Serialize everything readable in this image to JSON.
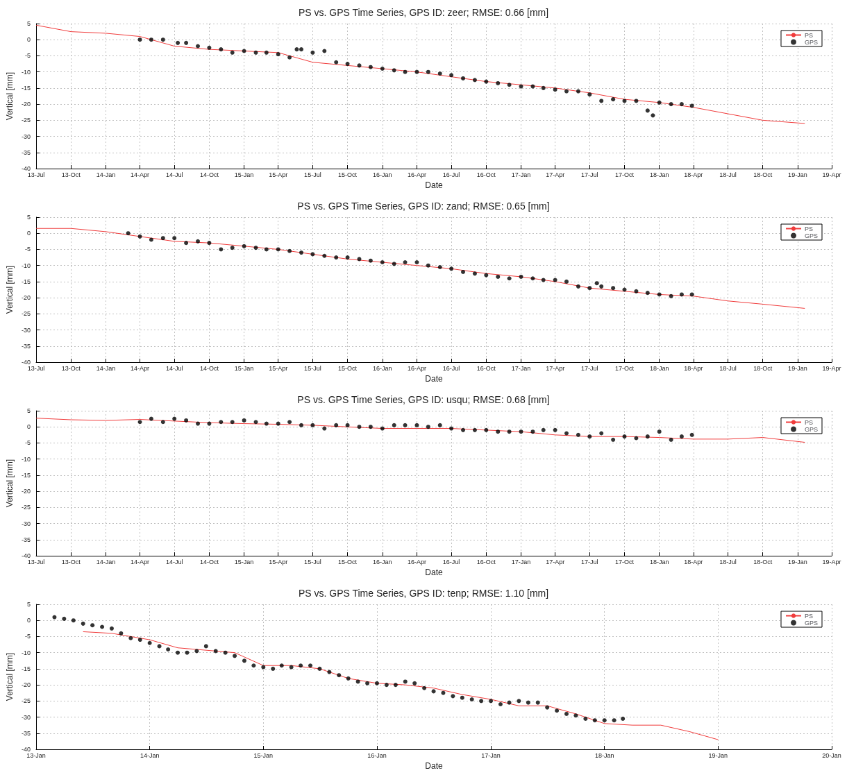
{
  "chart_data": [
    {
      "type": "line",
      "title": "PS vs. GPS Time Series, GPS ID: zeer; RMSE: 0.66 [mm]",
      "xlabel": "Date",
      "ylabel": "Vertical [mm]",
      "xlim": [
        "2013-07",
        "2019-04"
      ],
      "xticks": [
        {
          "value": "2013-07",
          "label": "13-Jul"
        },
        {
          "value": "2013-10",
          "label": "13-Oct"
        },
        {
          "value": "2014-01",
          "label": "14-Jan"
        },
        {
          "value": "2014-04",
          "label": "14-Apr"
        },
        {
          "value": "2014-07",
          "label": "14-Jul"
        },
        {
          "value": "2014-10",
          "label": "14-Oct"
        },
        {
          "value": "2015-01",
          "label": "15-Jan"
        },
        {
          "value": "2015-04",
          "label": "15-Apr"
        },
        {
          "value": "2015-07",
          "label": "15-Jul"
        },
        {
          "value": "2015-10",
          "label": "15-Oct"
        },
        {
          "value": "2016-01",
          "label": "16-Jan"
        },
        {
          "value": "2016-04",
          "label": "16-Apr"
        },
        {
          "value": "2016-07",
          "label": "16-Jul"
        },
        {
          "value": "2016-10",
          "label": "16-Oct"
        },
        {
          "value": "2017-01",
          "label": "17-Jan"
        },
        {
          "value": "2017-04",
          "label": "17-Apr"
        },
        {
          "value": "2017-07",
          "label": "17-Jul"
        },
        {
          "value": "2017-10",
          "label": "17-Oct"
        },
        {
          "value": "2018-01",
          "label": "18-Jan"
        },
        {
          "value": "2018-04",
          "label": "18-Apr"
        },
        {
          "value": "2018-07",
          "label": "18-Jul"
        },
        {
          "value": "2018-10",
          "label": "18-Oct"
        },
        {
          "value": "2019-01",
          "label": "19-Jan"
        },
        {
          "value": "2019-04",
          "label": "19-Apr"
        }
      ],
      "ylim": [
        -40,
        5
      ],
      "yticks": [
        -40,
        -35,
        -30,
        -25,
        -20,
        -15,
        -10,
        -5,
        0,
        5
      ],
      "grid": true,
      "legend": "top right",
      "series": [
        {
          "name": "PS",
          "type": "line",
          "color": "#f03c3c",
          "x": [
            "2013-07",
            "2013-10",
            "2014-01",
            "2014-04",
            "2014-07",
            "2014-10",
            "2015-01",
            "2015-04",
            "2015-07",
            "2015-10",
            "2016-01",
            "2016-04",
            "2016-07",
            "2016-10",
            "2017-01",
            "2017-04",
            "2017-07",
            "2017-10",
            "2018-01",
            "2018-04",
            "2018-10",
            "2019-01-20"
          ],
          "values": [
            4.5,
            2.5,
            2,
            1,
            -2,
            -3,
            -3.5,
            -4,
            -7,
            -8,
            -9,
            -10,
            -11.5,
            -13,
            -14,
            -15,
            -16.5,
            -18.5,
            -19.5,
            -21,
            -25,
            -26
          ]
        },
        {
          "name": "GPS",
          "type": "scatter",
          "marker": "circle",
          "color": "#000000",
          "x": [
            "2014-04",
            "2014-05",
            "2014-06",
            "2014-07-10",
            "2014-08",
            "2014-09",
            "2014-10",
            "2014-11",
            "2014-12",
            "2015-01",
            "2015-02",
            "2015-03",
            "2015-04",
            "2015-05",
            "2015-05-20",
            "2015-06",
            "2015-07",
            "2015-08",
            "2015-09",
            "2015-10",
            "2015-11",
            "2015-12",
            "2016-01",
            "2016-02",
            "2016-03",
            "2016-04",
            "2016-05",
            "2016-06",
            "2016-07",
            "2016-08",
            "2016-09",
            "2016-10",
            "2016-11",
            "2016-12",
            "2017-01",
            "2017-02",
            "2017-03",
            "2017-04",
            "2017-05",
            "2017-06",
            "2017-07",
            "2017-08",
            "2017-09",
            "2017-10",
            "2017-11",
            "2017-12",
            "2017-12-15",
            "2018-01",
            "2018-02",
            "2018-03",
            "2018-03-28"
          ],
          "values": [
            0,
            0,
            0,
            -1,
            -1,
            -2,
            -2.5,
            -3,
            -4,
            -3.5,
            -4,
            -4,
            -4.5,
            -5.5,
            -3,
            -3,
            -4,
            -3.5,
            -7,
            -7.5,
            -8,
            -8.5,
            -9,
            -9.5,
            -10,
            -10,
            -10,
            -10.5,
            -11,
            -12,
            -12.5,
            -13,
            -13.5,
            -14,
            -14.5,
            -14.5,
            -15,
            -15.5,
            -16,
            -16,
            -17,
            -19,
            -18.5,
            -19,
            -19,
            -22,
            -23.5,
            -19.5,
            -20,
            -20,
            -20.5
          ]
        }
      ]
    },
    {
      "type": "line",
      "title": "PS vs. GPS Time Series, GPS ID: zand; RMSE: 0.65 [mm]",
      "xlabel": "Date",
      "ylabel": "Vertical [mm]",
      "xlim": [
        "2013-07",
        "2019-04"
      ],
      "xticks": [
        {
          "value": "2013-07",
          "label": "13-Jul"
        },
        {
          "value": "2013-10",
          "label": "13-Oct"
        },
        {
          "value": "2014-01",
          "label": "14-Jan"
        },
        {
          "value": "2014-04",
          "label": "14-Apr"
        },
        {
          "value": "2014-07",
          "label": "14-Jul"
        },
        {
          "value": "2014-10",
          "label": "14-Oct"
        },
        {
          "value": "2015-01",
          "label": "15-Jan"
        },
        {
          "value": "2015-04",
          "label": "15-Apr"
        },
        {
          "value": "2015-07",
          "label": "15-Jul"
        },
        {
          "value": "2015-10",
          "label": "15-Oct"
        },
        {
          "value": "2016-01",
          "label": "16-Jan"
        },
        {
          "value": "2016-04",
          "label": "16-Apr"
        },
        {
          "value": "2016-07",
          "label": "16-Jul"
        },
        {
          "value": "2016-10",
          "label": "16-Oct"
        },
        {
          "value": "2017-01",
          "label": "17-Jan"
        },
        {
          "value": "2017-04",
          "label": "17-Apr"
        },
        {
          "value": "2017-07",
          "label": "17-Jul"
        },
        {
          "value": "2017-10",
          "label": "17-Oct"
        },
        {
          "value": "2018-01",
          "label": "18-Jan"
        },
        {
          "value": "2018-04",
          "label": "18-Apr"
        },
        {
          "value": "2018-07",
          "label": "18-Jul"
        },
        {
          "value": "2018-10",
          "label": "18-Oct"
        },
        {
          "value": "2019-01",
          "label": "19-Jan"
        },
        {
          "value": "2019-04",
          "label": "19-Apr"
        }
      ],
      "ylim": [
        -40,
        5
      ],
      "yticks": [
        -40,
        -35,
        -30,
        -25,
        -20,
        -15,
        -10,
        -5,
        0,
        5
      ],
      "grid": true,
      "legend": "top right",
      "series": [
        {
          "name": "PS",
          "type": "line",
          "color": "#f03c3c",
          "x": [
            "2013-07",
            "2013-10",
            "2014-01",
            "2014-04",
            "2014-07",
            "2014-10",
            "2015-01",
            "2015-04",
            "2015-07",
            "2015-10",
            "2016-01",
            "2016-04",
            "2016-07",
            "2016-10",
            "2017-01",
            "2017-04",
            "2017-07",
            "2017-10",
            "2018-01",
            "2018-04",
            "2018-07",
            "2018-10",
            "2019-01-20"
          ],
          "values": [
            1.5,
            1.5,
            0.5,
            -1,
            -2.5,
            -3,
            -4,
            -5,
            -6.5,
            -8,
            -9,
            -10,
            -11,
            -12.5,
            -13.5,
            -15,
            -17,
            -18,
            -19,
            -19.5,
            -21,
            -22,
            -23.3
          ]
        },
        {
          "name": "GPS",
          "type": "scatter",
          "marker": "circle",
          "color": "#000000",
          "x": [
            "2014-03",
            "2014-04",
            "2014-05",
            "2014-06",
            "2014-07",
            "2014-08",
            "2014-09",
            "2014-10",
            "2014-11",
            "2014-12",
            "2015-01",
            "2015-02",
            "2015-03",
            "2015-04",
            "2015-05",
            "2015-06",
            "2015-07",
            "2015-08",
            "2015-09",
            "2015-10",
            "2015-11",
            "2015-12",
            "2016-01",
            "2016-02",
            "2016-03",
            "2016-04",
            "2016-05",
            "2016-06",
            "2016-07",
            "2016-08",
            "2016-09",
            "2016-10",
            "2016-11",
            "2016-12",
            "2017-01",
            "2017-02",
            "2017-03",
            "2017-04",
            "2017-05",
            "2017-06",
            "2017-07",
            "2017-07-20",
            "2017-08",
            "2017-09",
            "2017-10",
            "2017-11",
            "2017-12",
            "2018-01",
            "2018-02",
            "2018-03",
            "2018-03-28"
          ],
          "values": [
            0,
            -1,
            -2,
            -1.5,
            -1.5,
            -3,
            -2.5,
            -3,
            -5,
            -4.5,
            -4,
            -4.5,
            -5,
            -5,
            -5.5,
            -6,
            -6.5,
            -7,
            -7.5,
            -7.5,
            -8,
            -8.5,
            -9,
            -9.5,
            -9,
            -9,
            -10,
            -10.5,
            -11,
            -12,
            -12.5,
            -13,
            -13.5,
            -14,
            -13.5,
            -14,
            -14.5,
            -14.5,
            -15,
            -16.5,
            -17,
            -15.5,
            -16.5,
            -17,
            -17.5,
            -18,
            -18.5,
            -19,
            -19.5,
            -19,
            -19
          ]
        }
      ]
    },
    {
      "type": "line",
      "title": "PS vs. GPS Time Series, GPS ID: usqu; RMSE: 0.68 [mm]",
      "xlabel": "Date",
      "ylabel": "Vertical [mm]",
      "xlim": [
        "2013-07",
        "2019-04"
      ],
      "xticks": [
        {
          "value": "2013-07",
          "label": "13-Jul"
        },
        {
          "value": "2013-10",
          "label": "13-Oct"
        },
        {
          "value": "2014-01",
          "label": "14-Jan"
        },
        {
          "value": "2014-04",
          "label": "14-Apr"
        },
        {
          "value": "2014-07",
          "label": "14-Jul"
        },
        {
          "value": "2014-10",
          "label": "14-Oct"
        },
        {
          "value": "2015-01",
          "label": "15-Jan"
        },
        {
          "value": "2015-04",
          "label": "15-Apr"
        },
        {
          "value": "2015-07",
          "label": "15-Jul"
        },
        {
          "value": "2015-10",
          "label": "15-Oct"
        },
        {
          "value": "2016-01",
          "label": "16-Jan"
        },
        {
          "value": "2016-04",
          "label": "16-Apr"
        },
        {
          "value": "2016-07",
          "label": "16-Jul"
        },
        {
          "value": "2016-10",
          "label": "16-Oct"
        },
        {
          "value": "2017-01",
          "label": "17-Jan"
        },
        {
          "value": "2017-04",
          "label": "17-Apr"
        },
        {
          "value": "2017-07",
          "label": "17-Jul"
        },
        {
          "value": "2017-10",
          "label": "17-Oct"
        },
        {
          "value": "2018-01",
          "label": "18-Jan"
        },
        {
          "value": "2018-04",
          "label": "18-Apr"
        },
        {
          "value": "2018-07",
          "label": "18-Jul"
        },
        {
          "value": "2018-10",
          "label": "18-Oct"
        },
        {
          "value": "2019-01",
          "label": "19-Jan"
        },
        {
          "value": "2019-04",
          "label": "19-Apr"
        }
      ],
      "ylim": [
        -40,
        5
      ],
      "yticks": [
        -40,
        -35,
        -30,
        -25,
        -20,
        -15,
        -10,
        -5,
        0,
        5
      ],
      "grid": true,
      "legend": "top right",
      "series": [
        {
          "name": "PS",
          "type": "line",
          "color": "#f03c3c",
          "x": [
            "2013-07",
            "2013-10",
            "2014-01",
            "2014-04",
            "2014-07",
            "2014-10",
            "2015-01",
            "2015-04",
            "2015-07",
            "2015-10",
            "2016-01",
            "2016-04",
            "2016-07",
            "2016-10",
            "2017-01",
            "2017-04",
            "2017-07",
            "2017-10",
            "2018-01",
            "2018-04",
            "2018-07",
            "2018-10",
            "2019-01-20"
          ],
          "values": [
            2.7,
            2.2,
            2,
            2.3,
            1.8,
            1.3,
            1,
            0.8,
            0.5,
            0,
            -0.5,
            -0.5,
            -0.5,
            -1,
            -1.5,
            -2.5,
            -3,
            -3,
            -3.3,
            -3.8,
            -3.8,
            -3.3,
            -4.8
          ]
        },
        {
          "name": "GPS",
          "type": "scatter",
          "marker": "circle",
          "color": "#000000",
          "x": [
            "2014-04",
            "2014-05",
            "2014-06",
            "2014-07",
            "2014-08",
            "2014-09",
            "2014-10",
            "2014-11",
            "2014-12",
            "2015-01",
            "2015-02",
            "2015-03",
            "2015-04",
            "2015-05",
            "2015-06",
            "2015-07",
            "2015-08",
            "2015-09",
            "2015-10",
            "2015-11",
            "2015-12",
            "2016-01",
            "2016-02",
            "2016-03",
            "2016-04",
            "2016-05",
            "2016-06",
            "2016-07",
            "2016-08",
            "2016-09",
            "2016-10",
            "2016-11",
            "2016-12",
            "2017-01",
            "2017-02",
            "2017-03",
            "2017-04",
            "2017-05",
            "2017-06",
            "2017-07",
            "2017-08",
            "2017-09",
            "2017-10",
            "2017-11",
            "2017-12",
            "2018-01",
            "2018-02",
            "2018-03",
            "2018-03-28"
          ],
          "values": [
            1.5,
            2.5,
            1.5,
            2.5,
            2,
            1,
            1,
            1.5,
            1.5,
            2,
            1.5,
            1,
            1,
            1.5,
            0.5,
            0.5,
            -0.5,
            0.5,
            0.5,
            0,
            0,
            -0.5,
            0.5,
            0.5,
            0.5,
            0,
            0.5,
            -0.5,
            -1,
            -1,
            -1,
            -1.5,
            -1.5,
            -1.5,
            -1.5,
            -1,
            -1,
            -2,
            -2.5,
            -3,
            -2,
            -4,
            -3,
            -3.5,
            -3,
            -1.5,
            -4,
            -3,
            -2.5
          ]
        }
      ]
    },
    {
      "type": "line",
      "title": "PS vs. GPS Time Series, GPS ID: tenp; RMSE: 1.10 [mm]",
      "xlabel": "Date",
      "ylabel": "Vertical [mm]",
      "xlim": [
        "2013-01",
        "2020-01"
      ],
      "xticks": [
        {
          "value": "2013-01",
          "label": "13-Jan"
        },
        {
          "value": "2014-01",
          "label": "14-Jan"
        },
        {
          "value": "2015-01",
          "label": "15-Jan"
        },
        {
          "value": "2016-01",
          "label": "16-Jan"
        },
        {
          "value": "2017-01",
          "label": "17-Jan"
        },
        {
          "value": "2018-01",
          "label": "18-Jan"
        },
        {
          "value": "2019-01",
          "label": "19-Jan"
        },
        {
          "value": "2020-01",
          "label": "20-Jan"
        }
      ],
      "ylim": [
        -40,
        5
      ],
      "yticks": [
        -40,
        -35,
        -30,
        -25,
        -20,
        -15,
        -10,
        -5,
        0,
        5
      ],
      "grid": true,
      "legend": "top right",
      "series": [
        {
          "name": "PS",
          "type": "line",
          "color": "#f03c3c",
          "x": [
            "2013-06",
            "2013-09",
            "2014-01",
            "2014-04",
            "2014-06",
            "2014-10",
            "2015-01",
            "2015-04",
            "2015-07",
            "2015-10",
            "2016-01",
            "2016-04",
            "2016-07",
            "2016-10",
            "2017-01",
            "2017-04",
            "2017-07",
            "2017-10",
            "2018-01",
            "2018-04",
            "2018-07",
            "2018-10",
            "2019-01"
          ],
          "values": [
            -3.5,
            -4,
            -6,
            -8.5,
            -9,
            -10,
            -14,
            -14,
            -15,
            -18,
            -19.5,
            -20,
            -21,
            -23,
            -24.5,
            -26.5,
            -26.5,
            -29,
            -32,
            -32.5,
            -32.5,
            -34.5,
            -37
          ]
        },
        {
          "name": "GPS",
          "type": "scatter",
          "marker": "circle",
          "color": "#000000",
          "x": [
            "2013-03",
            "2013-04",
            "2013-05",
            "2013-06",
            "2013-07",
            "2013-08",
            "2013-09",
            "2013-10",
            "2013-11",
            "2013-12",
            "2014-01",
            "2014-02",
            "2014-03",
            "2014-04",
            "2014-05",
            "2014-06",
            "2014-07",
            "2014-08",
            "2014-09",
            "2014-10",
            "2014-11",
            "2014-12",
            "2015-01",
            "2015-02",
            "2015-03",
            "2015-04",
            "2015-05",
            "2015-06",
            "2015-07",
            "2015-08",
            "2015-09",
            "2015-10",
            "2015-11",
            "2015-12",
            "2016-01",
            "2016-02",
            "2016-03",
            "2016-04",
            "2016-05",
            "2016-06",
            "2016-07",
            "2016-08",
            "2016-09",
            "2016-10",
            "2016-11",
            "2016-12",
            "2017-01",
            "2017-02",
            "2017-03",
            "2017-04",
            "2017-05",
            "2017-06",
            "2017-07",
            "2017-08",
            "2017-09",
            "2017-10",
            "2017-11",
            "2017-12",
            "2018-01",
            "2018-02",
            "2018-03"
          ],
          "values": [
            1,
            0.5,
            0,
            -1,
            -1.5,
            -2,
            -2.5,
            -4,
            -5.5,
            -6,
            -7,
            -8,
            -9,
            -10,
            -10,
            -9.5,
            -8,
            -9.5,
            -10,
            -11,
            -12.5,
            -14,
            -14.5,
            -15,
            -14,
            -14.5,
            -14,
            -14,
            -15,
            -16,
            -17,
            -18,
            -19,
            -19.5,
            -19.5,
            -20,
            -20,
            -19,
            -19.5,
            -21,
            -22,
            -22.5,
            -23.5,
            -24,
            -24.5,
            -25,
            -25,
            -26,
            -25.5,
            -25,
            -25.5,
            -25.5,
            -27,
            -28,
            -29,
            -29.5,
            -30.5,
            -31,
            -31,
            -31,
            -30.5
          ]
        }
      ]
    }
  ]
}
